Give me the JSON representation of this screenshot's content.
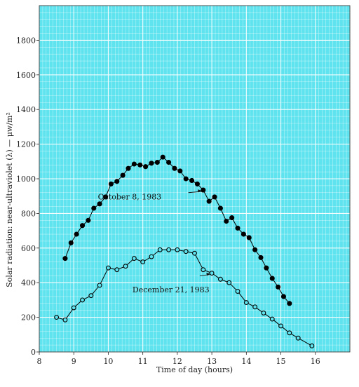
{
  "chart_data": {
    "type": "line",
    "xlabel": "Time of day (hours)",
    "ylabel": "Solar radiation: near-ultraviolet (λ) — μw/m²",
    "xlim": [
      8,
      17
    ],
    "ylim": [
      0,
      2000
    ],
    "xticks": [
      8,
      9,
      10,
      11,
      12,
      13,
      14,
      15,
      16
    ],
    "yticks": [
      0,
      200,
      400,
      600,
      800,
      1000,
      1200,
      1400,
      1600,
      1800
    ],
    "grid": true,
    "background_color": "#5fe3ee",
    "grid_color": "#ffffff",
    "series": [
      {
        "name": "October 8, 1983",
        "marker": "filled",
        "color": "#000000",
        "x": [
          8.75,
          8.92,
          9.08,
          9.25,
          9.42,
          9.58,
          9.75,
          9.92,
          10.08,
          10.25,
          10.42,
          10.58,
          10.75,
          10.92,
          11.08,
          11.25,
          11.42,
          11.58,
          11.75,
          11.92,
          12.08,
          12.25,
          12.42,
          12.58,
          12.75,
          12.92,
          13.08,
          13.25,
          13.42,
          13.58,
          13.75,
          13.92,
          14.08,
          14.25,
          14.42,
          14.58,
          14.75,
          14.92,
          15.08,
          15.25
        ],
        "y": [
          540,
          630,
          680,
          730,
          760,
          830,
          855,
          895,
          970,
          985,
          1020,
          1060,
          1085,
          1080,
          1070,
          1090,
          1095,
          1125,
          1095,
          1060,
          1045,
          1000,
          990,
          970,
          935,
          870,
          895,
          830,
          755,
          775,
          715,
          680,
          660,
          590,
          545,
          485,
          425,
          375,
          320,
          280
        ]
      },
      {
        "name": "December 21, 1983",
        "marker": "open",
        "color": "#000000",
        "x": [
          8.5,
          8.75,
          9.0,
          9.25,
          9.5,
          9.75,
          10.0,
          10.25,
          10.5,
          10.75,
          11.0,
          11.25,
          11.5,
          11.75,
          12.0,
          12.25,
          12.5,
          12.75,
          13.0,
          13.25,
          13.5,
          13.75,
          14.0,
          14.25,
          14.5,
          14.75,
          15.0,
          15.25,
          15.5,
          15.9
        ],
        "y": [
          200,
          185,
          255,
          300,
          325,
          385,
          485,
          475,
          495,
          540,
          520,
          550,
          590,
          590,
          590,
          580,
          570,
          475,
          455,
          420,
          400,
          350,
          285,
          260,
          225,
          190,
          150,
          110,
          80,
          35
        ]
      }
    ],
    "annotations": [
      {
        "series": 0,
        "text": "October 8, 1983",
        "pointIndex": 24
      },
      {
        "series": 1,
        "text": "December 21, 1983",
        "pointIndex": 18
      }
    ]
  }
}
